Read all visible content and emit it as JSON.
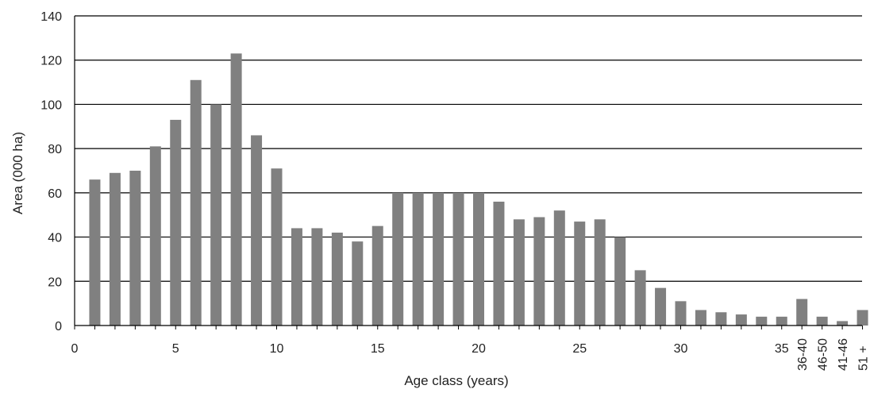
{
  "chart_data": {
    "type": "bar",
    "xlabel": "Age class (years)",
    "ylabel": "Area (000 ha)",
    "ylim": [
      0,
      140
    ],
    "yticks": [
      0,
      20,
      40,
      60,
      80,
      100,
      120,
      140
    ],
    "grid": "horizontal",
    "bar_color": "#808080",
    "categories": [
      "1",
      "2",
      "3",
      "4",
      "5",
      "6",
      "7",
      "8",
      "9",
      "10",
      "11",
      "12",
      "13",
      "14",
      "15",
      "16",
      "17",
      "18",
      "19",
      "20",
      "21",
      "22",
      "23",
      "24",
      "25",
      "26",
      "27",
      "28",
      "29",
      "30",
      "31",
      "32",
      "33",
      "34",
      "35",
      "36-40",
      "46-50",
      "41-46",
      "51 +"
    ],
    "values": [
      66,
      69,
      70,
      81,
      93,
      111,
      100,
      123,
      86,
      71,
      44,
      44,
      42,
      38,
      45,
      60,
      60,
      60,
      60,
      60,
      56,
      48,
      49,
      52,
      47,
      48,
      40,
      25,
      17,
      11,
      7,
      6,
      5,
      4,
      4,
      12,
      4,
      2,
      7
    ],
    "x_tick_labels": [
      "0",
      "5",
      "10",
      "15",
      "20",
      "25",
      "30",
      "35"
    ],
    "x_tick_positions": [
      0,
      5,
      10,
      15,
      20,
      25,
      30,
      35
    ],
    "x_rotated_labels": [
      "36-40",
      "46-50",
      "41-46",
      "51 +"
    ]
  }
}
